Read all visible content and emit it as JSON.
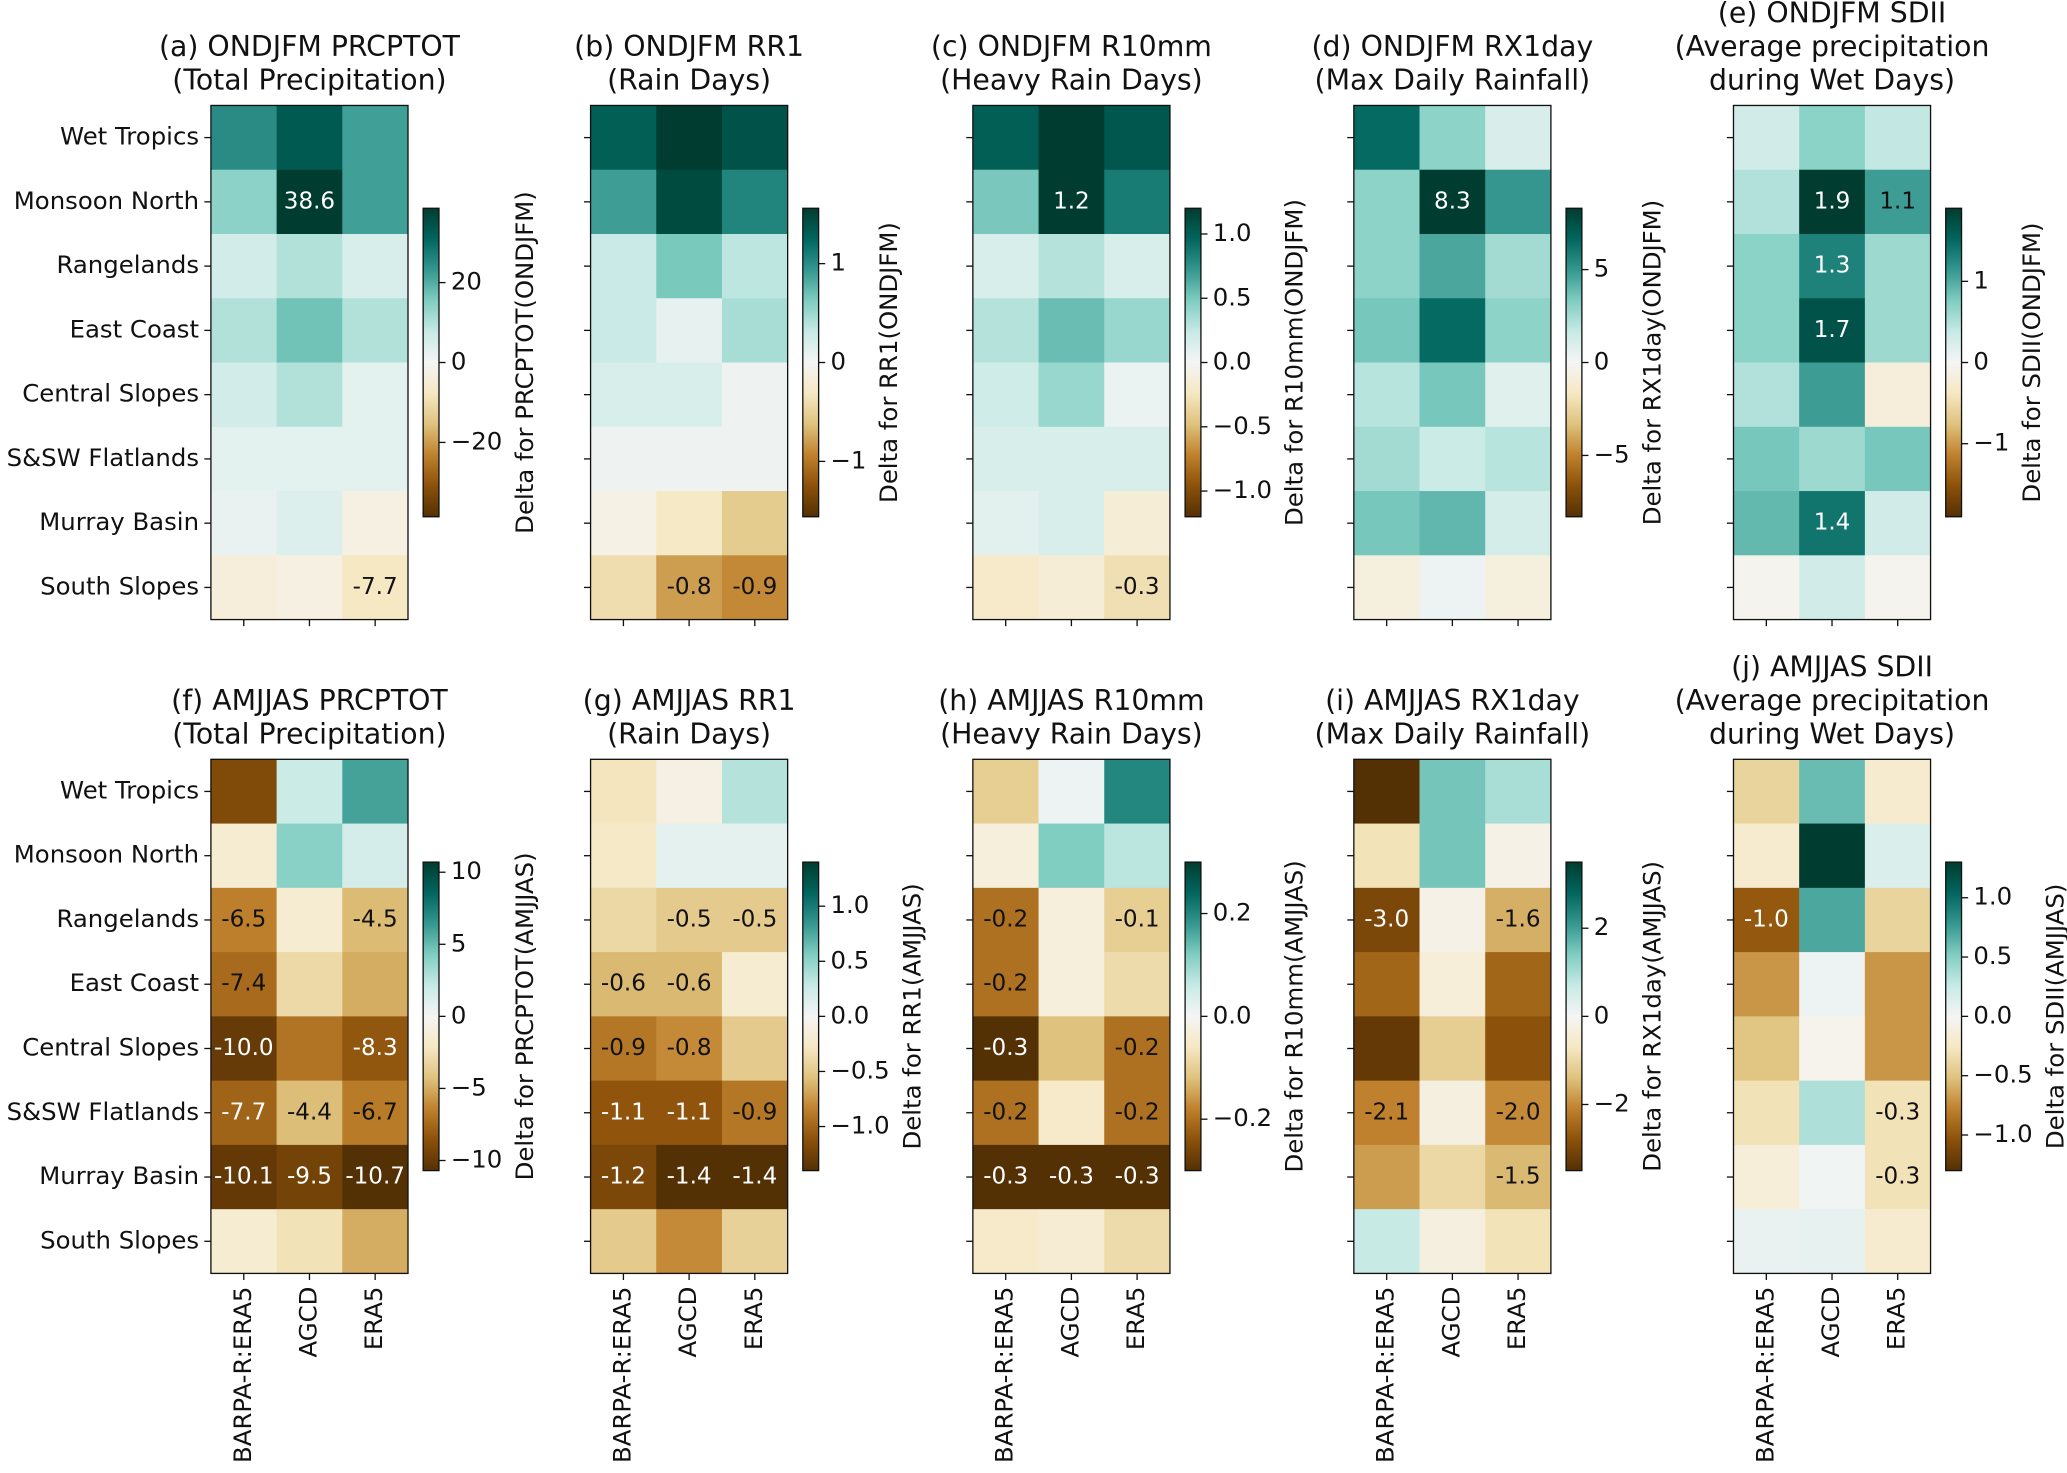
{
  "chart_data": {
    "type": "heatmap",
    "rows": [
      "Wet Tropics",
      "Monsoon North",
      "Rangelands",
      "East Coast",
      "Central Slopes",
      "S&SW Flatlands",
      "Murray Basin",
      "South Slopes"
    ],
    "columns": [
      "BARPA-R:ERA5",
      "AGCD",
      "ERA5"
    ],
    "cmap": [
      "#543005",
      "#8c510a",
      "#bf812d",
      "#dfc27d",
      "#f6e8c3",
      "#f5f5f5",
      "#c7eae5",
      "#80cdc1",
      "#35978f",
      "#01665e",
      "#003c30"
    ],
    "panels": [
      {
        "title": [
          "(a) ONDJFM PRCPTOT",
          "(Total Precipitation)"
        ],
        "colorbar_label": "Delta for PRCPTOT(ONDJFM)",
        "vlim": [
          -38.6,
          38.6
        ],
        "ticks": [
          {
            "value": 20,
            "label": "20"
          },
          0,
          {
            "value": -20,
            "label": "−20"
          }
        ],
        "values": [
          [
            25,
            33,
            22
          ],
          [
            14,
            38.6,
            22
          ],
          [
            6,
            10,
            5
          ],
          [
            10,
            17,
            10
          ],
          [
            6,
            10,
            3
          ],
          [
            3,
            3,
            3
          ],
          [
            2,
            4,
            -3
          ],
          [
            -4,
            -3,
            -7.7
          ]
        ],
        "value_labels": [
          [
            null,
            null,
            null
          ],
          [
            null,
            "38.6",
            null
          ],
          [
            null,
            null,
            null
          ],
          [
            null,
            null,
            null
          ],
          [
            null,
            null,
            null
          ],
          [
            null,
            null,
            null
          ],
          [
            null,
            null,
            null
          ],
          [
            null,
            null,
            "-7.7"
          ]
        ]
      },
      {
        "title": [
          "(b) ONDJFM RR1",
          "(Rain Days)"
        ],
        "colorbar_label": "Delta for RR1(ONDJFM)",
        "vlim": [
          -1.56,
          1.56
        ],
        "ticks": [
          1,
          0,
          {
            "value": -1,
            "label": "−1"
          }
        ],
        "values": [
          [
            1.3,
            1.56,
            1.4
          ],
          [
            0.9,
            1.45,
            1.05
          ],
          [
            0.3,
            0.65,
            0.35
          ],
          [
            0.3,
            0.1,
            0.45
          ],
          [
            0.2,
            0.2,
            0.05
          ],
          [
            0.05,
            0.05,
            0.05
          ],
          [
            -0.1,
            -0.3,
            -0.55
          ],
          [
            -0.4,
            -0.8,
            -0.9
          ]
        ],
        "value_labels": [
          [
            null,
            null,
            null
          ],
          [
            null,
            null,
            null
          ],
          [
            null,
            null,
            null
          ],
          [
            null,
            null,
            null
          ],
          [
            null,
            null,
            null
          ],
          [
            null,
            null,
            null
          ],
          [
            null,
            null,
            null
          ],
          [
            null,
            "-0.8",
            "-0.9"
          ]
        ]
      },
      {
        "title": [
          "(c) ONDJFM R10mm",
          "(Heavy Rain Days)"
        ],
        "colorbar_label": "Delta for R10mm(ONDJFM)",
        "vlim": [
          -1.2,
          1.2
        ],
        "ticks": [
          {
            "value": 1,
            "label": "1.0"
          },
          0.5,
          {
            "value": 0,
            "label": "0.0"
          },
          {
            "value": -0.5,
            "label": "−0.5"
          },
          {
            "value": -1,
            "label": "−1.0"
          }
        ],
        "values": [
          [
            1.0,
            1.2,
            1.05
          ],
          [
            0.5,
            1.2,
            0.85
          ],
          [
            0.15,
            0.3,
            0.15
          ],
          [
            0.3,
            0.55,
            0.4
          ],
          [
            0.2,
            0.4,
            0.05
          ],
          [
            0.15,
            0.15,
            0.15
          ],
          [
            0.1,
            0.15,
            -0.15
          ],
          [
            -0.2,
            -0.15,
            -0.3
          ]
        ],
        "value_labels": [
          [
            null,
            null,
            null
          ],
          [
            null,
            "1.2",
            null
          ],
          [
            null,
            null,
            null
          ],
          [
            null,
            null,
            null
          ],
          [
            null,
            null,
            null
          ],
          [
            null,
            null,
            null
          ],
          [
            null,
            null,
            null
          ],
          [
            null,
            null,
            "-0.3"
          ]
        ]
      },
      {
        "title": [
          "(d) ONDJFM RX1day",
          "(Max Daily Rainfall)"
        ],
        "colorbar_label": "Delta for RX1day(ONDJFM)",
        "vlim": [
          -8.3,
          8.3
        ],
        "ticks": [
          5,
          0,
          {
            "value": -5,
            "label": "−5"
          }
        ],
        "values": [
          [
            6.5,
            3,
            1
          ],
          [
            3,
            8.3,
            5
          ],
          [
            3,
            4.5,
            2.5
          ],
          [
            3.5,
            6.5,
            3
          ],
          [
            2,
            3.5,
            0.8
          ],
          [
            2.5,
            1.5,
            2
          ],
          [
            3.5,
            4,
            1.2
          ],
          [
            -0.8,
            0.3,
            -0.8
          ]
        ],
        "value_labels": [
          [
            null,
            null,
            null
          ],
          [
            null,
            "8.3",
            null
          ],
          [
            null,
            null,
            null
          ],
          [
            null,
            null,
            null
          ],
          [
            null,
            null,
            null
          ],
          [
            null,
            null,
            null
          ],
          [
            null,
            null,
            null
          ],
          [
            null,
            null,
            null
          ]
        ]
      },
      {
        "title": [
          "(e) ONDJFM SDII",
          "(Average precipitation",
          "during Wet Days)"
        ],
        "colorbar_label": "Delta for SDII(ONDJFM)",
        "vlim": [
          -1.9,
          1.9
        ],
        "ticks": [
          1,
          0,
          {
            "value": -1,
            "label": "−1"
          }
        ],
        "values": [
          [
            0.3,
            0.7,
            0.4
          ],
          [
            0.5,
            1.9,
            1.1
          ],
          [
            0.7,
            1.3,
            0.6
          ],
          [
            0.7,
            1.7,
            0.6
          ],
          [
            0.5,
            1.1,
            -0.2
          ],
          [
            0.8,
            0.6,
            0.8
          ],
          [
            0.9,
            1.4,
            0.3
          ],
          [
            -0.05,
            0.3,
            -0.05
          ]
        ],
        "value_labels": [
          [
            null,
            null,
            null
          ],
          [
            null,
            "1.9",
            "1.1"
          ],
          [
            null,
            "1.3",
            null
          ],
          [
            null,
            "1.7",
            null
          ],
          [
            null,
            null,
            null
          ],
          [
            null,
            null,
            null
          ],
          [
            null,
            "1.4",
            null
          ],
          [
            null,
            null,
            null
          ]
        ]
      },
      {
        "title": [
          "(f) AMJJAS PRCPTOT",
          "(Total Precipitation)"
        ],
        "colorbar_label": "Delta for PRCPTOT(AMJJAS)",
        "vlim": [
          -10.7,
          10.7
        ],
        "ticks": [
          10,
          5,
          0,
          {
            "value": -5,
            "label": "−5"
          },
          {
            "value": -10,
            "label": "−10"
          }
        ],
        "values": [
          [
            -9,
            2,
            6
          ],
          [
            -1.5,
            4,
            1.5
          ],
          [
            -6.5,
            -1.5,
            -4.5
          ],
          [
            -7.4,
            -3,
            -5
          ],
          [
            -10,
            -7,
            -8.3
          ],
          [
            -7.7,
            -4.4,
            -6.7
          ],
          [
            -10.1,
            -9.5,
            -10.7
          ],
          [
            -1.5,
            -2.5,
            -5
          ]
        ],
        "value_labels": [
          [
            null,
            null,
            null
          ],
          [
            null,
            null,
            null
          ],
          [
            "-6.5",
            null,
            "-4.5"
          ],
          [
            "-7.4",
            null,
            null
          ],
          [
            "-10.0",
            null,
            "-8.3"
          ],
          [
            "-7.7",
            "-4.4",
            "-6.7"
          ],
          [
            "-10.1",
            "-9.5",
            "-10.7"
          ],
          [
            null,
            null,
            null
          ]
        ]
      },
      {
        "title": [
          "(g) AMJJAS RR1",
          "(Rain Days)"
        ],
        "colorbar_label": "Delta for RR1(AMJJAS)",
        "vlim": [
          -1.4,
          1.4
        ],
        "ticks": [
          {
            "value": 1,
            "label": "1.0"
          },
          0.5,
          {
            "value": 0,
            "label": "0.0"
          },
          {
            "value": -0.5,
            "label": "−0.5"
          },
          {
            "value": -1,
            "label": "−1.0"
          }
        ],
        "values": [
          [
            -0.3,
            -0.1,
            0.35
          ],
          [
            -0.25,
            0.1,
            0.1
          ],
          [
            -0.4,
            -0.5,
            -0.5
          ],
          [
            -0.6,
            -0.6,
            -0.2
          ],
          [
            -0.9,
            -0.8,
            -0.5
          ],
          [
            -1.1,
            -1.1,
            -0.9
          ],
          [
            -1.2,
            -1.4,
            -1.4
          ],
          [
            -0.5,
            -0.8,
            -0.45
          ]
        ],
        "value_labels": [
          [
            null,
            null,
            null
          ],
          [
            null,
            null,
            null
          ],
          [
            null,
            "-0.5",
            "-0.5"
          ],
          [
            "-0.6",
            "-0.6",
            null
          ],
          [
            "-0.9",
            "-0.8",
            null
          ],
          [
            "-1.1",
            "-1.1",
            "-0.9"
          ],
          [
            "-1.2",
            "-1.4",
            "-1.4"
          ],
          [
            null,
            null,
            null
          ]
        ]
      },
      {
        "title": [
          "(h) AMJJAS R10mm",
          "(Heavy Rain Days)"
        ],
        "colorbar_label": "Delta for R10mm(AMJJAS)",
        "vlim": [
          -0.3,
          0.3
        ],
        "ticks": [
          0.2,
          {
            "value": 0,
            "label": "0.0"
          },
          {
            "value": -0.2,
            "label": "−0.2"
          }
        ],
        "values": [
          [
            -0.1,
            0.01,
            0.2
          ],
          [
            -0.03,
            0.12,
            0.07
          ],
          [
            -0.2,
            -0.03,
            -0.1
          ],
          [
            -0.2,
            -0.03,
            -0.08
          ],
          [
            -0.3,
            -0.12,
            -0.2
          ],
          [
            -0.2,
            -0.05,
            -0.2
          ],
          [
            -0.3,
            -0.3,
            -0.3
          ],
          [
            -0.05,
            -0.04,
            -0.08
          ]
        ],
        "value_labels": [
          [
            null,
            null,
            null
          ],
          [
            null,
            null,
            null
          ],
          [
            "-0.2",
            null,
            "-0.1"
          ],
          [
            "-0.2",
            null,
            null
          ],
          [
            "-0.3",
            null,
            "-0.2"
          ],
          [
            "-0.2",
            null,
            "-0.2"
          ],
          [
            "-0.3",
            "-0.3",
            "-0.3"
          ],
          [
            null,
            null,
            null
          ]
        ]
      },
      {
        "title": [
          "(i) AMJJAS RX1day",
          "(Max Daily Rainfall)"
        ],
        "colorbar_label": "Delta for RX1day(AMJJAS)",
        "vlim": [
          -3.5,
          3.5
        ],
        "ticks": [
          2,
          0,
          {
            "value": -2,
            "label": "−2"
          }
        ],
        "values": [
          [
            -3.5,
            1.5,
            1
          ],
          [
            -0.8,
            1.5,
            -0.2
          ],
          [
            -3.0,
            -0.2,
            -1.6
          ],
          [
            -2.5,
            -0.4,
            -2.5
          ],
          [
            -3.3,
            -1.2,
            -2.8
          ],
          [
            -2.1,
            -0.3,
            -2.0
          ],
          [
            -1.8,
            -1.0,
            -1.5
          ],
          [
            0.7,
            -0.3,
            -0.8
          ]
        ],
        "value_labels": [
          [
            null,
            null,
            null
          ],
          [
            null,
            null,
            null
          ],
          [
            "-3.0",
            null,
            "-1.6"
          ],
          [
            null,
            null,
            null
          ],
          [
            null,
            null,
            null
          ],
          [
            "-2.1",
            null,
            "-2.0"
          ],
          [
            null,
            null,
            "-1.5"
          ],
          [
            null,
            null,
            null
          ]
        ]
      },
      {
        "title": [
          "(j) AMJJAS SDII",
          "(Average precipitation",
          "during Wet Days)"
        ],
        "colorbar_label": "Delta for SDII(AMJJAS)",
        "vlim": [
          -1.3,
          1.3
        ],
        "ticks": [
          {
            "value": 1,
            "label": "1.0"
          },
          0.5,
          {
            "value": 0,
            "label": "0.0"
          },
          {
            "value": -0.5,
            "label": "−0.5"
          },
          {
            "value": -1,
            "label": "−1.0"
          }
        ],
        "values": [
          [
            -0.4,
            0.6,
            -0.2
          ],
          [
            -0.2,
            1.3,
            0.15
          ],
          [
            -1.0,
            0.7,
            -0.4
          ],
          [
            -0.7,
            0.05,
            -0.7
          ],
          [
            -0.5,
            -0.05,
            -0.7
          ],
          [
            -0.3,
            0.35,
            -0.3
          ],
          [
            -0.15,
            0.03,
            -0.3
          ],
          [
            0.06,
            0.08,
            -0.2
          ]
        ],
        "value_labels": [
          [
            null,
            null,
            null
          ],
          [
            null,
            null,
            null
          ],
          [
            "-1.0",
            null,
            null
          ],
          [
            null,
            null,
            null
          ],
          [
            null,
            null,
            null
          ],
          [
            null,
            null,
            "-0.3"
          ],
          [
            null,
            null,
            "-0.3"
          ],
          [
            null,
            null,
            null
          ]
        ]
      }
    ]
  }
}
